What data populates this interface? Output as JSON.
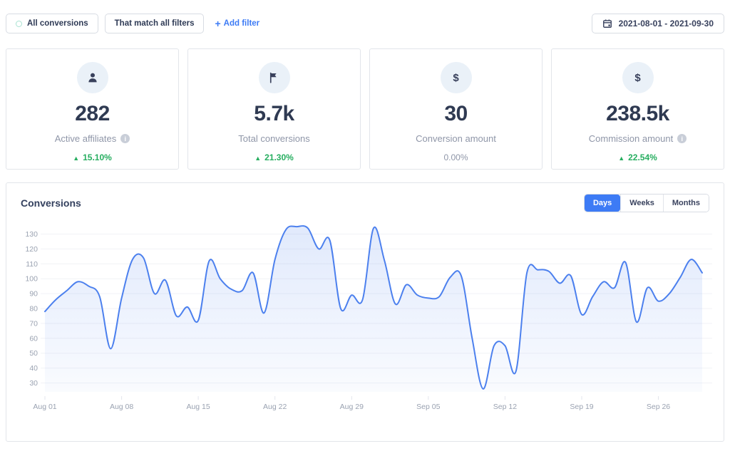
{
  "filters": {
    "all_conversions_label": "All conversions",
    "match_all_filters_label": "That match all filters",
    "add_filter_label": "Add filter",
    "date_range": "2021-08-01 - 2021-09-30"
  },
  "stats": [
    {
      "icon": "user",
      "value": "282",
      "label": "Active affiliates",
      "has_info": true,
      "change": "15.10%",
      "direction": "up"
    },
    {
      "icon": "flag",
      "value": "5.7k",
      "label": "Total conversions",
      "has_info": false,
      "change": "21.30%",
      "direction": "up"
    },
    {
      "icon": "dollar",
      "value": "30",
      "label": "Conversion amount",
      "has_info": false,
      "change": "0.00%",
      "direction": "none"
    },
    {
      "icon": "dollar",
      "value": "238.5k",
      "label": "Commission amount",
      "has_info": true,
      "change": "22.54%",
      "direction": "up"
    }
  ],
  "panel": {
    "title": "Conversions",
    "tabs": [
      {
        "label": "Days",
        "active": true
      },
      {
        "label": "Weeks",
        "active": false
      },
      {
        "label": "Months",
        "active": false
      }
    ]
  },
  "chart_data": {
    "type": "area",
    "title": "Conversions",
    "x": [
      "2021-08-01",
      "2021-08-02",
      "2021-08-03",
      "2021-08-04",
      "2021-08-05",
      "2021-08-06",
      "2021-08-07",
      "2021-08-08",
      "2021-08-09",
      "2021-08-10",
      "2021-08-11",
      "2021-08-12",
      "2021-08-13",
      "2021-08-14",
      "2021-08-15",
      "2021-08-16",
      "2021-08-17",
      "2021-08-18",
      "2021-08-19",
      "2021-08-20",
      "2021-08-21",
      "2021-08-22",
      "2021-08-23",
      "2021-08-24",
      "2021-08-25",
      "2021-08-26",
      "2021-08-27",
      "2021-08-28",
      "2021-08-29",
      "2021-08-30",
      "2021-08-31",
      "2021-09-01",
      "2021-09-02",
      "2021-09-03",
      "2021-09-04",
      "2021-09-05",
      "2021-09-06",
      "2021-09-07",
      "2021-09-08",
      "2021-09-09",
      "2021-09-10",
      "2021-09-11",
      "2021-09-12",
      "2021-09-13",
      "2021-09-14",
      "2021-09-15",
      "2021-09-16",
      "2021-09-17",
      "2021-09-18",
      "2021-09-19",
      "2021-09-20",
      "2021-09-21",
      "2021-09-22",
      "2021-09-23",
      "2021-09-24",
      "2021-09-25",
      "2021-09-26",
      "2021-09-27",
      "2021-09-28",
      "2021-09-29",
      "2021-09-30"
    ],
    "values": [
      78,
      86,
      92,
      98,
      95,
      88,
      53,
      87,
      113,
      114,
      90,
      99,
      75,
      81,
      72,
      112,
      100,
      93,
      92,
      104,
      77,
      113,
      133,
      135,
      134,
      120,
      126,
      80,
      89,
      86,
      134,
      112,
      83,
      96,
      89,
      87,
      88,
      101,
      102,
      60,
      26,
      55,
      55,
      38,
      104,
      106,
      105,
      97,
      102,
      76,
      88,
      98,
      94,
      111,
      71,
      94,
      85,
      90,
      101,
      113,
      104
    ],
    "x_tick_labels": [
      "Aug 01",
      "Aug 08",
      "Aug 15",
      "Aug 22",
      "Aug 29",
      "Sep 05",
      "Sep 12",
      "Sep 19",
      "Sep 26"
    ],
    "x_tick_every_days": 7,
    "y_ticks": [
      30,
      40,
      50,
      60,
      70,
      80,
      90,
      100,
      110,
      120,
      130
    ],
    "ylim": [
      24,
      136
    ],
    "grid": true,
    "legend": "none",
    "line_color": "#4c80ee",
    "fill_color_top": "rgba(76,128,238,0.17)",
    "fill_color_bottom": "rgba(76,128,238,0.03)",
    "axis_label_color": "#9aa2b1",
    "grid_color": "#f1f2f6"
  }
}
